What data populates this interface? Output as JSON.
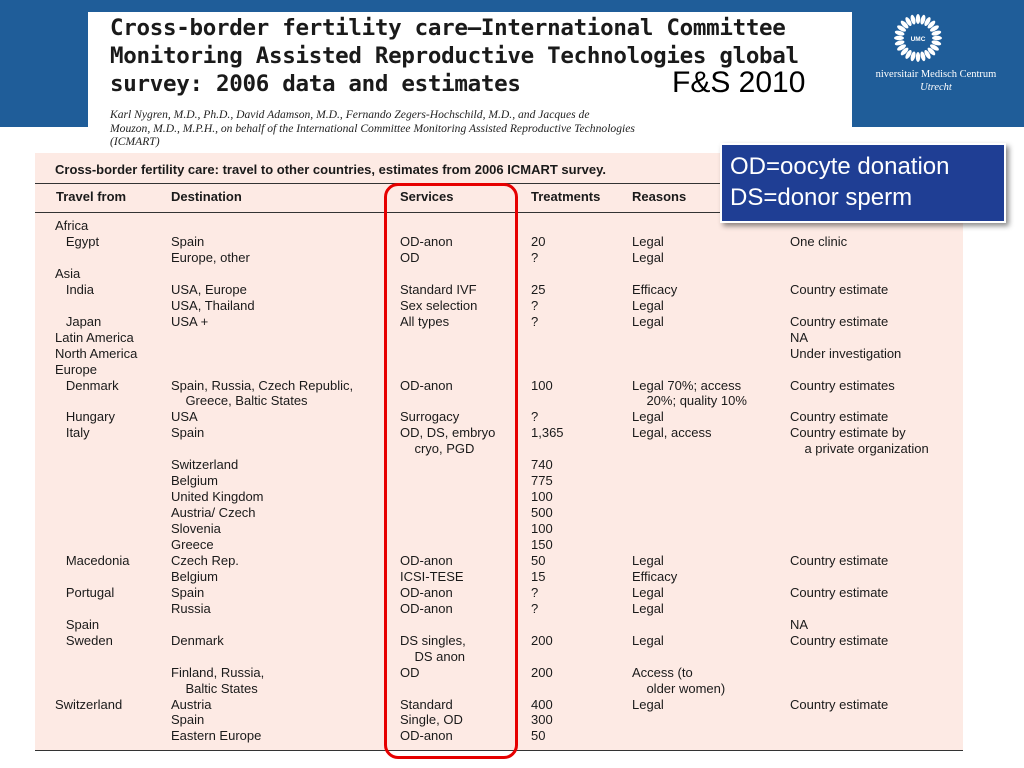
{
  "header": {
    "title_lines": [
      "Cross-border fertility care—International Committee",
      "Monitoring Assisted Reproductive Technologies global",
      "survey: 2006 data and estimates"
    ],
    "journal": "F&S 2010",
    "authors_lines": [
      "Karl Nygren, M.D., Ph.D., David Adamson, M.D., Fernando Zegers-Hochschild, M.D., and Jacques de",
      "Mouzon, M.D., M.P.H., on behalf of the International Committee Monitoring Assisted Reproductive Technologies",
      "(ICMART)"
    ],
    "logo_text": "UMC",
    "university_lines": [
      "niversitair Medisch Centrum",
      "Utrecht"
    ]
  },
  "legend": {
    "line1": "OD=oocyte donation",
    "line2": "DS=donor sperm"
  },
  "table": {
    "caption": "Cross-border fertility care: travel to other countries, estimates from 2006 ICMART survey.",
    "headers": [
      "Travel from",
      "Destination",
      "Services",
      "Treatments",
      "Reasons",
      ""
    ],
    "rows": [
      [
        "Africa",
        "",
        "",
        "",
        "",
        ""
      ],
      [
        "   Egypt",
        "Spain",
        "OD-anon",
        "20",
        "Legal",
        "One clinic"
      ],
      [
        "",
        "Europe, other",
        "OD",
        "?",
        "Legal",
        ""
      ],
      [
        "Asia",
        "",
        "",
        "",
        "",
        ""
      ],
      [
        "   India",
        "USA, Europe",
        "Standard IVF",
        "25",
        "Efficacy",
        "Country estimate"
      ],
      [
        "",
        "USA, Thailand",
        "Sex selection",
        "?",
        "Legal",
        ""
      ],
      [
        "   Japan",
        "USA +",
        "All types",
        "?",
        "Legal",
        "Country estimate"
      ],
      [
        "Latin America",
        "",
        "",
        "",
        "",
        "NA"
      ],
      [
        "North America",
        "",
        "",
        "",
        "",
        "Under investigation"
      ],
      [
        "Europe",
        "",
        "",
        "",
        "",
        ""
      ],
      [
        "   Denmark",
        "Spain, Russia, Czech Republic,",
        "OD-anon",
        "100",
        "Legal 70%; access",
        "Country estimates"
      ],
      [
        "",
        "    Greece, Baltic States",
        "",
        "",
        "    20%; quality 10%",
        ""
      ],
      [
        "   Hungary",
        "USA",
        "Surrogacy",
        "?",
        "Legal",
        "Country estimate"
      ],
      [
        "   Italy",
        "Spain",
        "OD, DS, embryo",
        "1,365",
        "Legal, access",
        "Country estimate by"
      ],
      [
        "",
        "",
        "    cryo, PGD",
        "",
        "",
        "    a private organization"
      ],
      [
        "",
        "Switzerland",
        "",
        "740",
        "",
        ""
      ],
      [
        "",
        "Belgium",
        "",
        "775",
        "",
        ""
      ],
      [
        "",
        "United Kingdom",
        "",
        "100",
        "",
        ""
      ],
      [
        "",
        "Austria/ Czech",
        "",
        "500",
        "",
        ""
      ],
      [
        "",
        "Slovenia",
        "",
        "100",
        "",
        ""
      ],
      [
        "",
        "Greece",
        "",
        "150",
        "",
        ""
      ],
      [
        "   Macedonia",
        "Czech Rep.",
        "OD-anon",
        "50",
        "Legal",
        "Country estimate"
      ],
      [
        "",
        "Belgium",
        "ICSI-TESE",
        "15",
        "Efficacy",
        ""
      ],
      [
        "   Portugal",
        "Spain",
        "OD-anon",
        "?",
        "Legal",
        "Country estimate"
      ],
      [
        "",
        "Russia",
        "OD-anon",
        "?",
        "Legal",
        ""
      ],
      [
        "   Spain",
        "",
        "",
        "",
        "",
        "NA"
      ],
      [
        "   Sweden",
        "Denmark",
        "DS singles,",
        "200",
        "Legal",
        "Country estimate"
      ],
      [
        "",
        "",
        "    DS anon",
        "",
        "",
        ""
      ],
      [
        "",
        "Finland, Russia,",
        "OD",
        "200",
        "Access (to",
        ""
      ],
      [
        "",
        "    Baltic States",
        "",
        "",
        "    older women)",
        ""
      ],
      [
        "Switzerland",
        "Austria",
        "Standard",
        "400",
        "Legal",
        "Country estimate"
      ],
      [
        "",
        "Spain",
        "Single, OD",
        "300",
        "",
        ""
      ],
      [
        "",
        "Eastern Europe",
        "OD-anon",
        "50",
        "",
        ""
      ]
    ]
  },
  "colors": {
    "banner": "#1f5d99",
    "legend_bg": "#1f3e94",
    "table_bg": "#fdeae4",
    "highlight": "#e60000"
  }
}
